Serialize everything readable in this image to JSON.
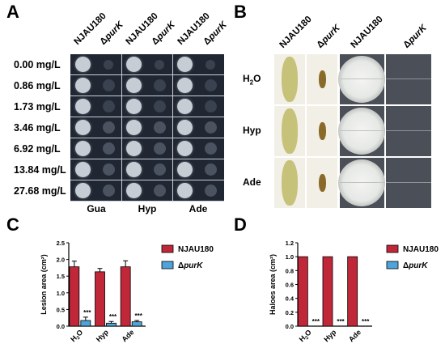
{
  "panel_labels": {
    "a": "A",
    "b": "B",
    "c": "C",
    "d": "D"
  },
  "panel_a": {
    "col_headers": [
      {
        "strain": "NJAU180",
        "italic": ""
      },
      {
        "strain": "Δ",
        "italic": "purK"
      },
      {
        "strain": "NJAU180",
        "italic": ""
      },
      {
        "strain": "Δ",
        "italic": "purK"
      },
      {
        "strain": "NJAU180",
        "italic": ""
      },
      {
        "strain": "Δ",
        "italic": "purK"
      }
    ],
    "concentrations": [
      "0.00  mg/L",
      "0.86  mg/L",
      "1.73  mg/L",
      "3.46  mg/L",
      "6.92  mg/L",
      "13.84 mg/L",
      "27.68 mg/L"
    ],
    "groups": [
      "Gua",
      "Hyp",
      "Ade"
    ],
    "colors": {
      "plate": "#202733",
      "colony_wt": "#cfd6de",
      "colony_mut": "#5a6372"
    }
  },
  "panel_b": {
    "col_headers": [
      {
        "strain": "NJAU180",
        "italic": ""
      },
      {
        "strain": "Δ",
        "italic": "purK"
      },
      {
        "strain": "NJAU180",
        "italic": ""
      },
      {
        "strain": "Δ",
        "italic": "purK"
      }
    ],
    "rows": [
      {
        "label_main": "H",
        "label_sub": "2",
        "label_tail": "O"
      },
      {
        "label_main": "Hyp",
        "label_sub": "",
        "label_tail": ""
      },
      {
        "label_main": "Ade",
        "label_sub": "",
        "label_tail": ""
      }
    ],
    "colors": {
      "lesion_bg": "#f2f0e6",
      "lesion_wt": "#c7c27a",
      "lesion_mut": "#8a6a2a",
      "halo_plate": "#4a4f58",
      "halo_zone": "#e6e8e6"
    }
  },
  "chart_data": [
    {
      "type": "bar",
      "panel": "C",
      "ylabel": "Lesion area (cm²)",
      "ylim": [
        0,
        2.5
      ],
      "yticks": [
        "0.0",
        "0.5",
        "1.0",
        "1.5",
        "2.0",
        "2.5"
      ],
      "categories": [
        "H2O",
        "Hyp",
        "Ade"
      ],
      "series": [
        {
          "name": "NJAU180",
          "values": [
            1.78,
            1.63,
            1.78
          ],
          "errors": [
            0.17,
            0.1,
            0.18
          ],
          "color": "#c0283a"
        },
        {
          "name": "ΔpurK",
          "values": [
            0.17,
            0.09,
            0.13
          ],
          "errors": [
            0.1,
            0.05,
            0.04
          ],
          "color": "#4ea3d8"
        }
      ],
      "annotations": [
        "***",
        "***",
        "***"
      ],
      "legend": {
        "placement": "top-right",
        "entries": [
          {
            "text": "NJAU180",
            "italic": ""
          },
          {
            "text": "Δ",
            "italic": "purK"
          }
        ]
      }
    },
    {
      "type": "bar",
      "panel": "D",
      "ylabel": "Haloes area (cm²)",
      "ylim": [
        0,
        1.2
      ],
      "yticks": [
        "0.0",
        "0.2",
        "0.4",
        "0.6",
        "0.8",
        "1.0",
        "1.2"
      ],
      "categories": [
        "H2O",
        "Hyp",
        "Ade"
      ],
      "series": [
        {
          "name": "NJAU180",
          "values": [
            1.0,
            1.0,
            1.0
          ],
          "color": "#c0283a"
        },
        {
          "name": "ΔpurK",
          "values": [
            0,
            0,
            0
          ],
          "color": "#4ea3d8"
        }
      ],
      "annotations": [
        "***",
        "***",
        "***"
      ],
      "legend": {
        "placement": "top-right",
        "entries": [
          {
            "text": "NJAU180",
            "italic": ""
          },
          {
            "text": "Δ",
            "italic": "purK"
          }
        ]
      }
    }
  ]
}
